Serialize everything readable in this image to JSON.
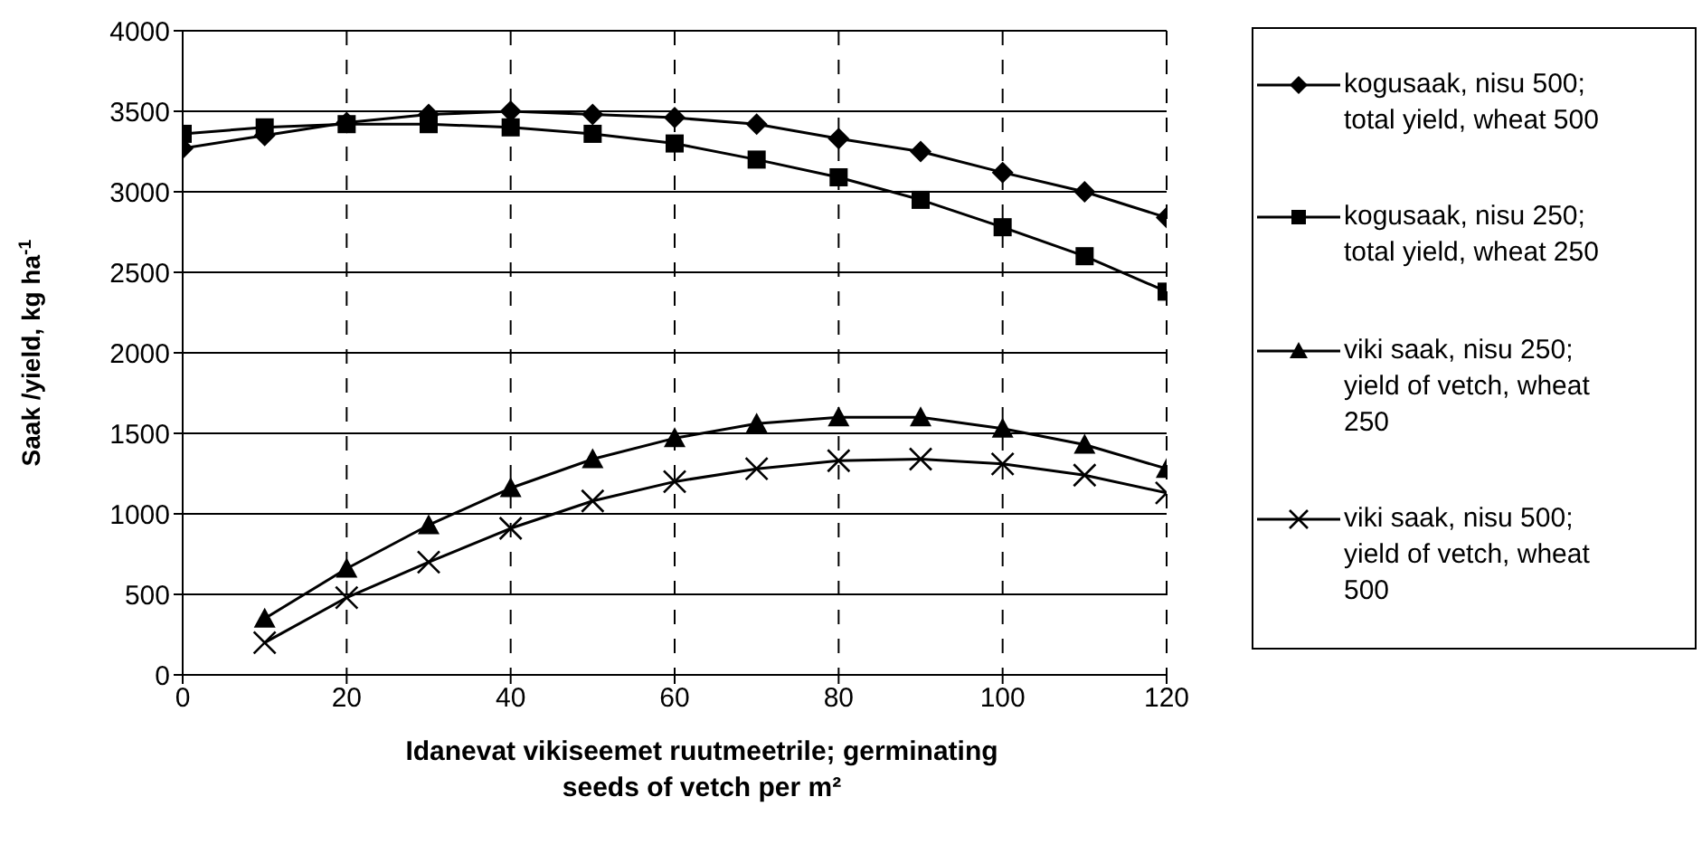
{
  "chart_data": {
    "type": "line",
    "xlabel": "Idanevat vikiseemet ruutmeetrile; germinating seeds of vetch per m²",
    "ylabel": "Saak /yield, kg ha$^{-1}$",
    "xlim": [
      0,
      120
    ],
    "xticks": [
      0,
      20,
      40,
      60,
      80,
      100,
      120
    ],
    "ylim": [
      0,
      4000
    ],
    "yticks": [
      0,
      500,
      1000,
      1500,
      2000,
      2500,
      3000,
      3500,
      4000
    ],
    "grid": true,
    "legend": "right",
    "line_style": "solid",
    "series": [
      {
        "name": "kogusaak, nisu 500; total yield, wheat 500",
        "color": "#000000",
        "marker": "diamond",
        "x": [
          0,
          10,
          20,
          30,
          40,
          50,
          60,
          70,
          80,
          90,
          100,
          110,
          120
        ],
        "values": [
          3270,
          3350,
          3430,
          3480,
          3500,
          3480,
          3460,
          3420,
          3330,
          3250,
          3120,
          3000,
          2840
        ]
      },
      {
        "name": "kogusaak, nisu 250; total yield, wheat 250",
        "color": "#000000",
        "marker": "square",
        "x": [
          0,
          10,
          20,
          30,
          40,
          50,
          60,
          70,
          80,
          90,
          100,
          110,
          120
        ],
        "values": [
          3360,
          3400,
          3420,
          3420,
          3400,
          3360,
          3300,
          3200,
          3090,
          2950,
          2780,
          2600,
          2380
        ]
      },
      {
        "name": "viki saak, nisu 250; yield of vetch, wheat 250",
        "color": "#000000",
        "marker": "triangle",
        "x": [
          10,
          20,
          30,
          40,
          50,
          60,
          70,
          80,
          90,
          100,
          110,
          120
        ],
        "values": [
          350,
          660,
          930,
          1160,
          1340,
          1470,
          1560,
          1600,
          1600,
          1530,
          1430,
          1280
        ]
      },
      {
        "name": "viki saak, nisu 500; yield of vetch, wheat 500",
        "color": "#000000",
        "marker": "cross",
        "x": [
          10,
          20,
          30,
          40,
          50,
          60,
          70,
          80,
          90,
          100,
          110,
          120
        ],
        "values": [
          200,
          480,
          700,
          910,
          1080,
          1200,
          1280,
          1330,
          1340,
          1310,
          1240,
          1130
        ]
      }
    ]
  }
}
